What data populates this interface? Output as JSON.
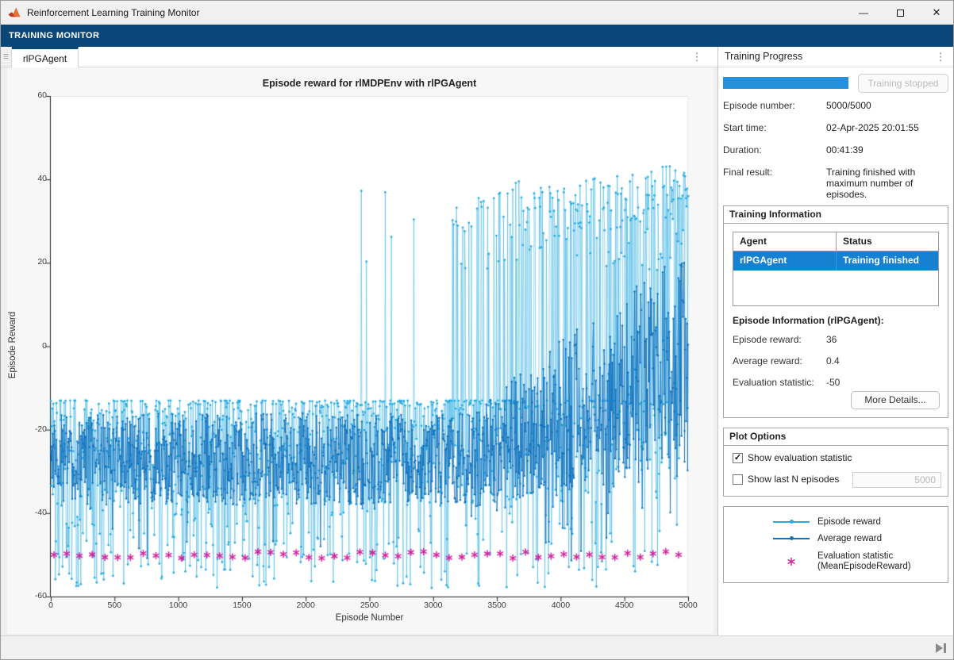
{
  "window": {
    "title": "Reinforcement Learning Training Monitor"
  },
  "icons": {
    "minimize": "—",
    "close": "✕",
    "ellipsis": "⋮",
    "tab_overflow": "☰",
    "check": "✓"
  },
  "ribbon": {
    "tab_label": "TRAINING MONITOR"
  },
  "doc": {
    "tab_label": "rlPGAgent"
  },
  "chart_data": {
    "type": "line",
    "title": "Episode reward for rlMDPEnv with rlPGAgent",
    "xlabel": "Episode Number",
    "ylabel": "Episode Reward",
    "xlim": [
      0,
      5000
    ],
    "ylim": [
      -60,
      60
    ],
    "x_ticks": [
      0,
      500,
      1000,
      1500,
      2000,
      2500,
      3000,
      3500,
      4000,
      4500,
      5000
    ],
    "y_ticks": [
      -60,
      -40,
      -20,
      0,
      20,
      40,
      60
    ],
    "grid": false,
    "legend_position": "separate-panel",
    "seed": 7,
    "series": [
      {
        "name": "Episode reward",
        "type": "line-with-dot-markers",
        "color": "#29ABE2",
        "line_alpha": 0.5,
        "summary": "5000 noisy episode rewards. Episodes 0-2150 bounded in [-58,-13] with hard ceiling at -13 (most mass -35..-13, dips to -58). Sparse positive spikes: ~33 near episode 2250, 17-28 near 2550-3150. From ~3150 positive spikes grow in frequency and height, reaching ~44 by episode 5000. Final value 36.",
        "profile": {
          "sample_step": 4,
          "baseline": {
            "ceiling": -13,
            "spread": 45,
            "shape": 2.2,
            "floor": -58
          },
          "spike_phases": [
            {
              "from": 0,
              "to": 2150,
              "prob": 0
            },
            {
              "from": 2150,
              "to": 2400,
              "prob": 0.012,
              "min": 4,
              "max": 33
            },
            {
              "from": 2400,
              "to": 3150,
              "prob": 0.016,
              "min": 12,
              "max": 38
            },
            {
              "from": 3150,
              "to": 3700,
              "prob_start": 0.12,
              "prob_end": 0.3,
              "min": 14,
              "max_start": 33,
              "max_end": 40
            },
            {
              "from": 3700,
              "to": 5001,
              "prob_start": 0.3,
              "prob_end": 0.62,
              "min": 16,
              "max_start": 38,
              "max_end": 44
            }
          ],
          "last_value": 36
        }
      },
      {
        "name": "Average reward",
        "type": "line-with-dot-markers",
        "color": "#1072BD",
        "line_alpha": 0.85,
        "summary": "Windowed average reward. Episodes 0-3300: dense band oscillating in [-38,-16] around -27 with occasional dips to ~-52. Episodes 3300-5000: center rises from -27 toward ~-3 while swing amplitude grows, peaks near +28 and frequent dips to ~-52. Final value 0.4.",
        "profile": {
          "sample_step": 4,
          "phases": [
            {
              "from": 0,
              "to": 3300,
              "center_start": -27,
              "center_end": -27,
              "amp_start": 11,
              "amp_end": 11,
              "dip_prob": 0.02
            },
            {
              "from": 3300,
              "to": 5001,
              "center_start": -27,
              "center_end": -3,
              "amp_start": 12,
              "amp_end": 28,
              "dip_prob": 0.1
            }
          ],
          "dip_extra": 22,
          "clamp": [
            -57,
            30
          ],
          "last_value": 0.4
        }
      },
      {
        "name": "Evaluation statistic (MeanEpisodeReward)",
        "type": "scatter",
        "marker": "asterisk",
        "color": "#D4219E",
        "summary": "Evaluation run every 100 episodes; all statistics ~= -50 (slight jitter).",
        "x_start": 25,
        "x_period": 100,
        "value": -50,
        "jitter": 0.8,
        "final_value": -50
      }
    ]
  },
  "progress": {
    "panel_title": "Training Progress",
    "progress_percent": 100,
    "progress_color": "#2590DC",
    "stop_button_label": "Training stopped",
    "fields": [
      {
        "label": "Episode number:",
        "value": "5000/5000"
      },
      {
        "label": "Start time:",
        "value": "02-Apr-2025 20:01:55"
      },
      {
        "label": "Duration:",
        "value": "00:41:39"
      },
      {
        "label": "Final result:",
        "value": "Training finished with maximum number of episodes."
      }
    ]
  },
  "training_info": {
    "title": "Training Information",
    "table": {
      "headers": [
        "Agent",
        "Status"
      ],
      "rows": [
        [
          "rlPGAgent",
          "Training finished"
        ]
      ],
      "selected_row": 0,
      "selection_color": "#1781D1"
    },
    "episode_info_title": "Episode Information (rlPGAgent):",
    "fields": [
      {
        "label": "Episode reward:",
        "value": "36"
      },
      {
        "label": "Average reward:",
        "value": "0.4"
      },
      {
        "label": "Evaluation statistic:",
        "value": "-50"
      }
    ],
    "more_details_label": "More Details..."
  },
  "plot_options": {
    "title": "Plot Options",
    "show_eval": {
      "label": "Show evaluation statistic",
      "checked": true
    },
    "show_last": {
      "label": "Show last N episodes",
      "checked": false,
      "value": "5000"
    }
  },
  "legend": {
    "items": [
      {
        "label": "Episode reward",
        "color": "#29ABE2",
        "marker": "line-dot"
      },
      {
        "label": "Average reward",
        "color": "#1072BD",
        "marker": "line-dot"
      },
      {
        "label": "Evaluation statistic",
        "sublabel": "(MeanEpisodeReward)",
        "color": "#D4219E",
        "marker": "asterisk"
      }
    ]
  }
}
